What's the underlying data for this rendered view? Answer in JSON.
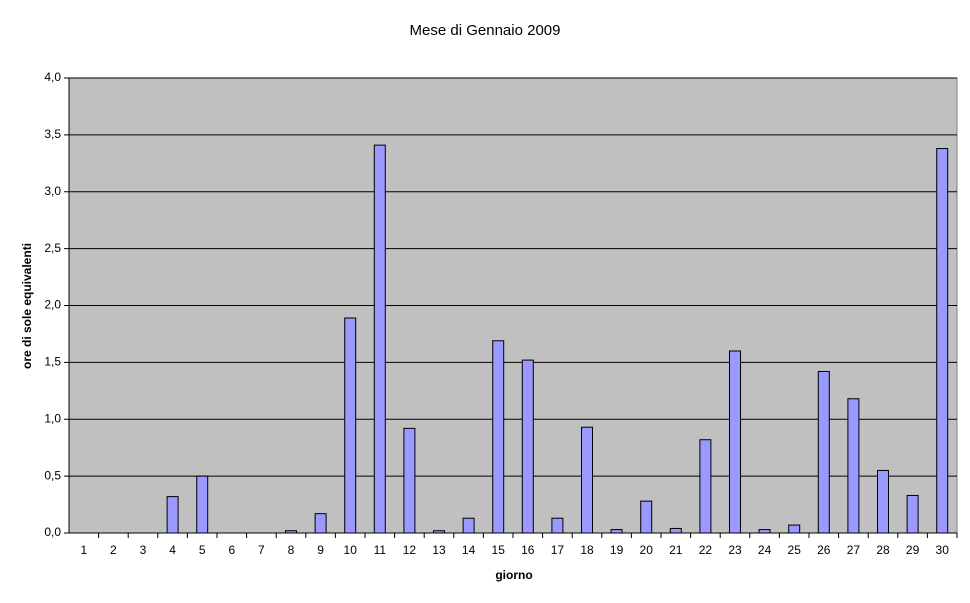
{
  "chart_data": {
    "type": "bar",
    "title": "Mese di Gennaio 2009",
    "x_label": "giorno",
    "y_label": "ore di sole equivalenti",
    "categories": [
      "1",
      "2",
      "3",
      "4",
      "5",
      "6",
      "7",
      "8",
      "9",
      "10",
      "11",
      "12",
      "13",
      "14",
      "15",
      "16",
      "17",
      "18",
      "19",
      "20",
      "21",
      "22",
      "23",
      "24",
      "25",
      "26",
      "27",
      "28",
      "29",
      "30"
    ],
    "values": [
      0,
      0,
      0,
      0.32,
      0.5,
      0,
      0,
      0.02,
      0.17,
      1.89,
      3.41,
      0.92,
      0.02,
      0.13,
      1.69,
      1.52,
      0.13,
      0.93,
      0.03,
      0.28,
      0.04,
      0.82,
      1.6,
      0.03,
      0.07,
      1.42,
      1.18,
      0.55,
      0.33,
      3.38
    ],
    "color": "#9999ff",
    "ylim": [
      0,
      4
    ],
    "yticks": [
      {
        "value": 0,
        "label": "0,0"
      },
      {
        "value": 0.5,
        "label": "0,5"
      },
      {
        "value": 1,
        "label": "1,0"
      },
      {
        "value": 1.5,
        "label": "1,5"
      },
      {
        "value": 2,
        "label": "2,0"
      },
      {
        "value": 2.5,
        "label": "2,5"
      },
      {
        "value": 3,
        "label": "3,0"
      },
      {
        "value": 3.5,
        "label": "3,5"
      },
      {
        "value": 4,
        "label": "4,0"
      }
    ],
    "grid": true
  }
}
